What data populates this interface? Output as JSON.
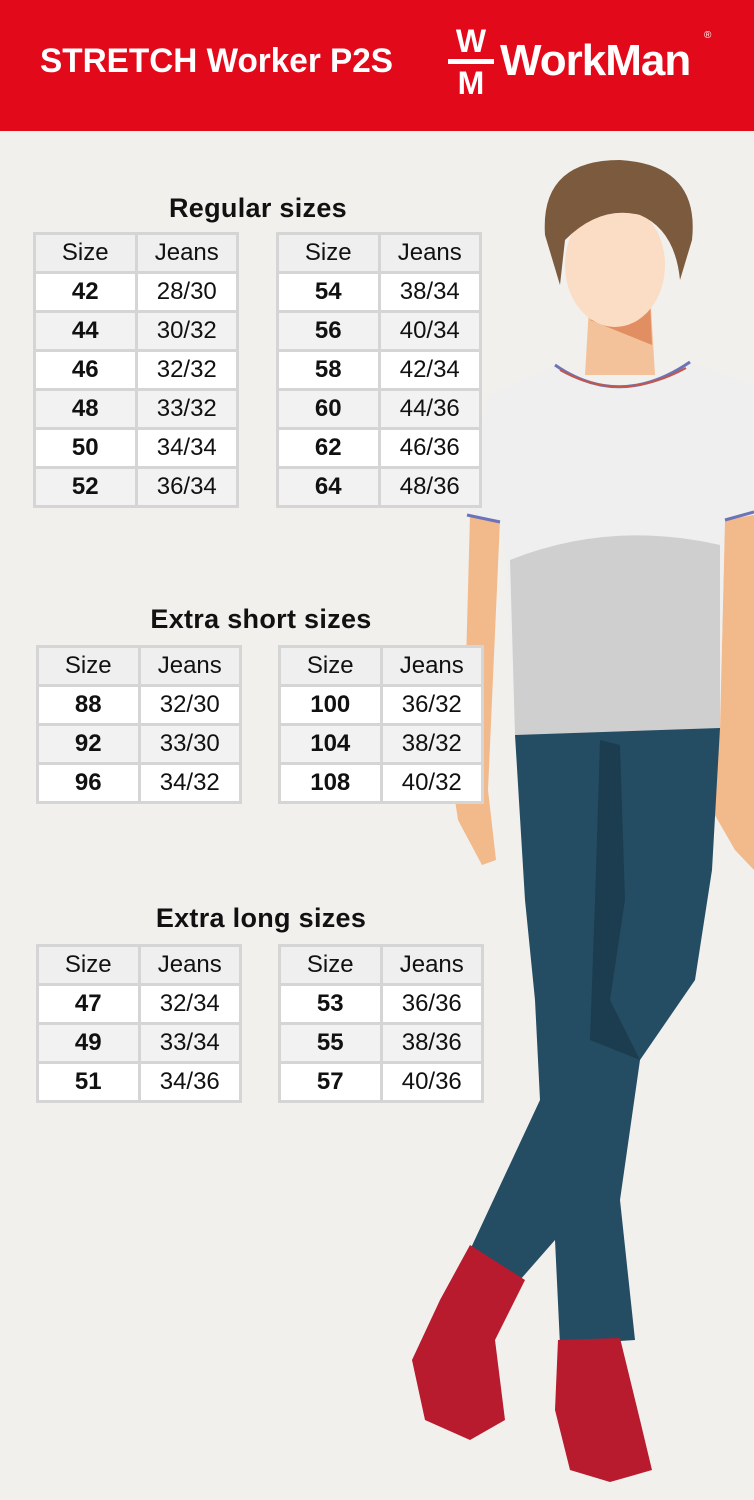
{
  "header": {
    "product_name": "STRETCH Worker P2S",
    "logo": {
      "monogram_top": "W",
      "monogram_bottom": "M",
      "brand": "WorkMan",
      "registered": "®"
    },
    "brand_color": "#e20a1a"
  },
  "columns": {
    "size": "Size",
    "jeans": "Jeans"
  },
  "sections": [
    {
      "title": "Regular sizes",
      "tables": [
        [
          [
            "42",
            "28/30"
          ],
          [
            "44",
            "30/32"
          ],
          [
            "46",
            "32/32"
          ],
          [
            "48",
            "33/32"
          ],
          [
            "50",
            "34/34"
          ],
          [
            "52",
            "36/34"
          ]
        ],
        [
          [
            "54",
            "38/34"
          ],
          [
            "56",
            "40/34"
          ],
          [
            "58",
            "42/34"
          ],
          [
            "60",
            "44/36"
          ],
          [
            "62",
            "46/36"
          ],
          [
            "64",
            "48/36"
          ]
        ]
      ]
    },
    {
      "title": "Extra short sizes",
      "tables": [
        [
          [
            "88",
            "32/30"
          ],
          [
            "92",
            "33/30"
          ],
          [
            "96",
            "34/32"
          ]
        ],
        [
          [
            "100",
            "36/32"
          ],
          [
            "104",
            "38/32"
          ],
          [
            "108",
            "40/32"
          ]
        ]
      ]
    },
    {
      "title": "Extra long sizes",
      "tables": [
        [
          [
            "47",
            "32/34"
          ],
          [
            "49",
            "33/34"
          ],
          [
            "51",
            "34/36"
          ]
        ],
        [
          [
            "53",
            "36/36"
          ],
          [
            "55",
            "38/36"
          ],
          [
            "57",
            "40/36"
          ]
        ]
      ]
    }
  ],
  "illustration": {
    "subject": "man-in-white-tshirt-and-jeans",
    "shoe_color": "#b81a2e",
    "jeans_color": "#244d63"
  }
}
